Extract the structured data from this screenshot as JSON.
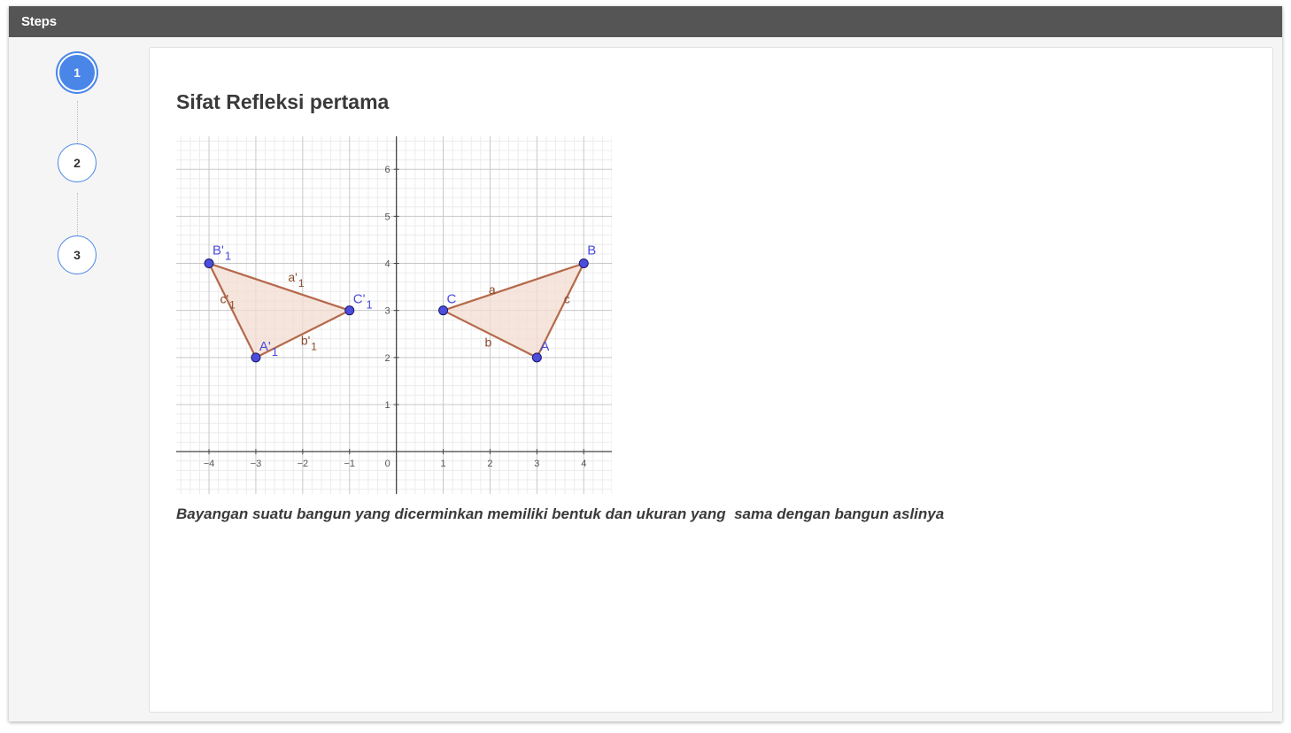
{
  "window": {
    "title": "Steps"
  },
  "steps": [
    {
      "label": "1",
      "active": true
    },
    {
      "label": "2",
      "active": false
    },
    {
      "label": "3",
      "active": false
    }
  ],
  "content": {
    "title": "Sifat Refleksi pertama",
    "caption": "Bayangan suatu bangun yang dicerminkan memiliki bentuk dan ukuran yang  sama dengan bangun aslinya"
  },
  "graph": {
    "x_range": [
      -4.7,
      4.6
    ],
    "y_range": [
      -0.9,
      6.7
    ],
    "x_ticks": [
      "−4",
      "−3",
      "−2",
      "−1",
      "0",
      "1",
      "2",
      "3",
      "4"
    ],
    "y_ticks": [
      "1",
      "2",
      "3",
      "4",
      "5",
      "6"
    ],
    "colors": {
      "point_fill": "#4c4cdd",
      "point_label": "#4c4cdd",
      "edge": "#b5694a",
      "fill": "#f1dcd0",
      "edge_label": "#8a4a2a",
      "grid_major": "#c8c8c8",
      "grid_minor": "#ececec",
      "axis": "#444444"
    },
    "triangles": [
      {
        "name": "original",
        "points": [
          {
            "name": "A",
            "sub": "",
            "x": 3,
            "y": 2
          },
          {
            "name": "B",
            "sub": "",
            "x": 4,
            "y": 4
          },
          {
            "name": "C",
            "sub": "",
            "x": 1,
            "y": 3
          }
        ],
        "sides": [
          {
            "name": "a",
            "sub": ""
          },
          {
            "name": "b",
            "sub": ""
          },
          {
            "name": "c",
            "sub": ""
          }
        ]
      },
      {
        "name": "reflection",
        "points": [
          {
            "name": "A'",
            "sub": "1",
            "x": -3,
            "y": 2
          },
          {
            "name": "B'",
            "sub": "1",
            "x": -4,
            "y": 4
          },
          {
            "name": "C'",
            "sub": "1",
            "x": -1,
            "y": 3
          }
        ],
        "sides": [
          {
            "name": "a'",
            "sub": "1"
          },
          {
            "name": "b'",
            "sub": "1"
          },
          {
            "name": "c'",
            "sub": "1"
          }
        ]
      }
    ]
  }
}
